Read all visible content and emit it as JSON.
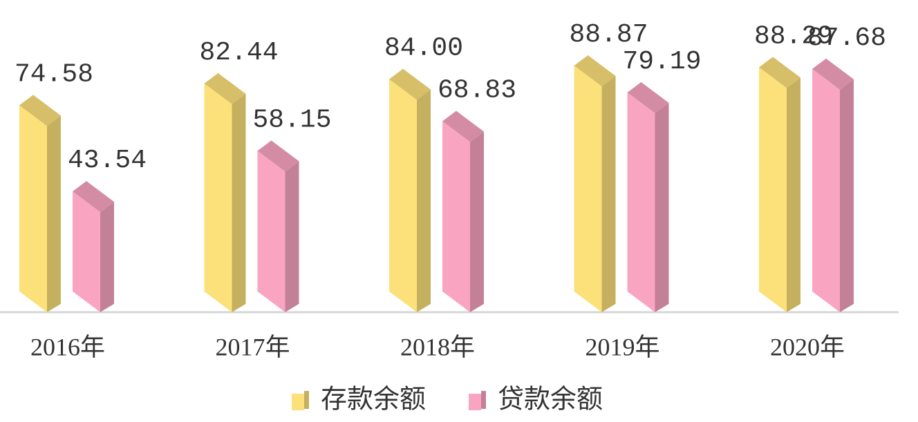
{
  "chart_data": {
    "type": "bar3d",
    "categories": [
      "2016年",
      "2017年",
      "2018年",
      "2019年",
      "2020年"
    ],
    "series": [
      {
        "name": "存款余额",
        "color": "#fce17a",
        "values": [
          74.58,
          82.44,
          84.0,
          88.87,
          88.29
        ],
        "value_labels": [
          "74.58",
          "82.44",
          "84.00",
          "88.87",
          "88.29"
        ]
      },
      {
        "name": "贷款余额",
        "color": "#f9a5c2",
        "values": [
          43.54,
          58.15,
          68.83,
          79.19,
          87.68
        ],
        "value_labels": [
          "43.54",
          "58.15",
          "68.83",
          "79.19",
          "87.68"
        ]
      }
    ],
    "legend": "bottom"
  }
}
